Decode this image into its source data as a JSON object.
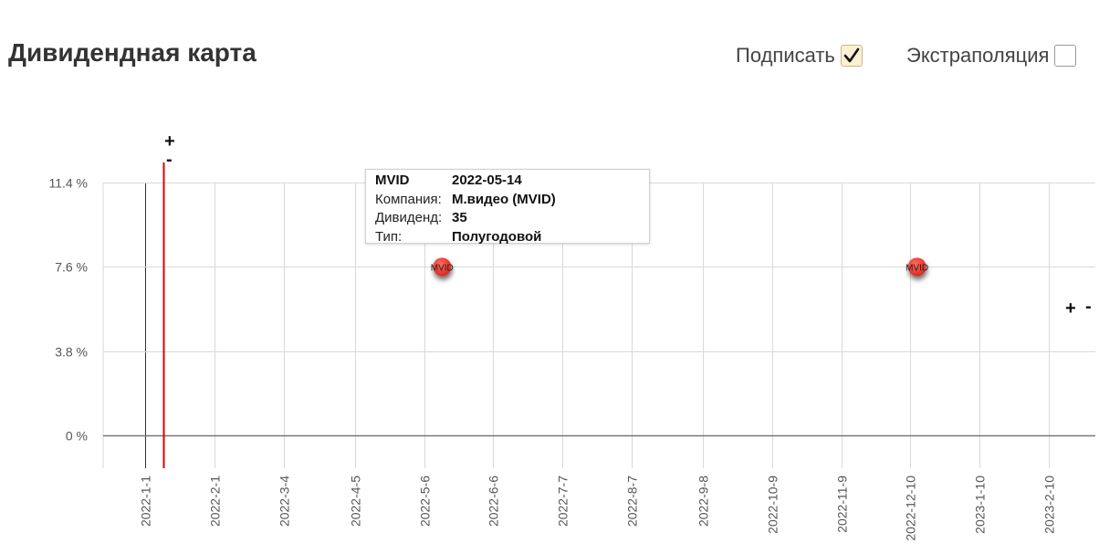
{
  "header": {
    "title": "Дивидендная карта",
    "sign_label": "Подписать",
    "sign_checked": true,
    "extrapolation_label": "Экстраполяция",
    "extrapolation_checked": false
  },
  "zoom": {
    "plus": "+",
    "minus": "-"
  },
  "tooltip": {
    "ticker": "MVID",
    "date": "2022-05-14",
    "company_label": "Компания:",
    "company_value": "М.видео (MVID)",
    "dividend_label": "Дивиденд:",
    "dividend_value": "35",
    "type_label": "Тип:",
    "type_value": "Полугодовой"
  },
  "chart_data": {
    "type": "scatter",
    "x_ticks": [
      "2022-1-1",
      "2022-2-1",
      "2022-3-4",
      "2022-4-5",
      "2022-5-6",
      "2022-6-6",
      "2022-7-7",
      "2022-8-7",
      "2022-9-8",
      "2022-10-9",
      "2022-11-9",
      "2022-12-10",
      "2023-1-10",
      "2023-2-10"
    ],
    "y_ticks": [
      "0 %",
      "3.8 %",
      "7.6 %",
      "11.4 %"
    ],
    "y_tick_values": [
      0,
      3.8,
      7.6,
      11.4
    ],
    "ylim": [
      -1.5,
      11.4
    ],
    "xlim": [
      "2021-12-13",
      "2023-3-3"
    ],
    "today": "2022-01-09",
    "points": [
      {
        "label": "MVID",
        "date": "2022-05-14",
        "y": 7.6
      },
      {
        "label": "MVID",
        "date": "2022-12-13",
        "y": 7.6
      }
    ],
    "colors": {
      "point": "#e8322a",
      "today_line": "#e00000",
      "grid": "#d9d9d9",
      "zero_line": "#777777"
    },
    "grid": true
  }
}
